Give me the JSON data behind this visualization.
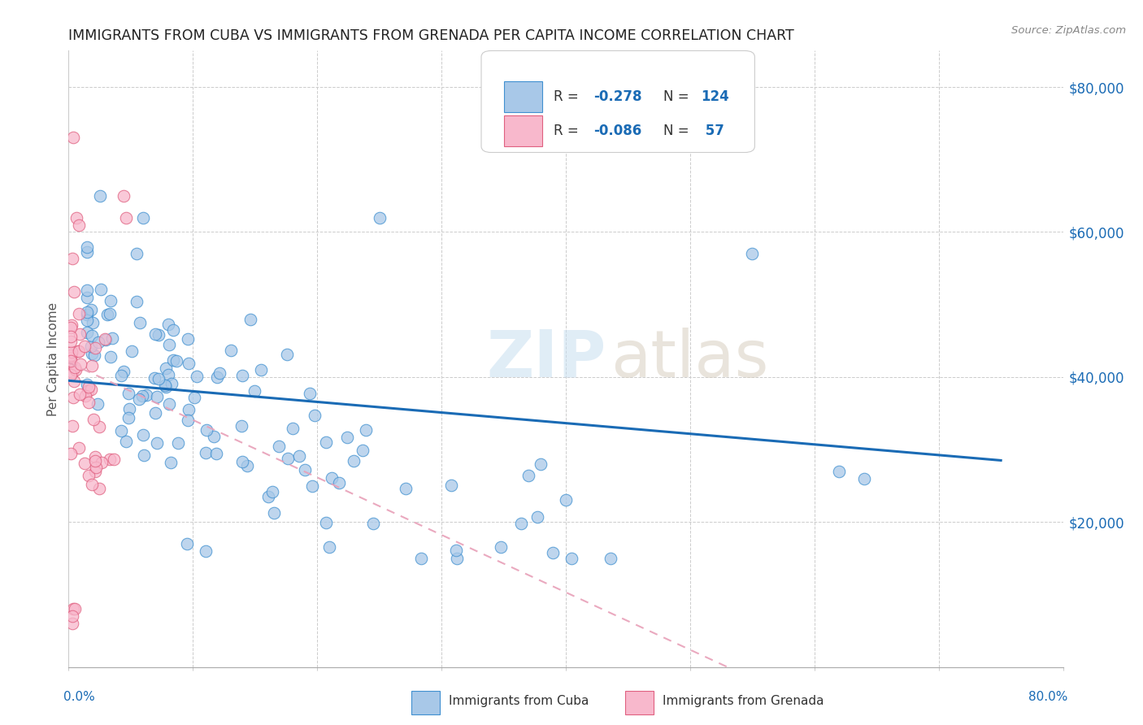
{
  "title": "IMMIGRANTS FROM CUBA VS IMMIGRANTS FROM GRENADA PER CAPITA INCOME CORRELATION CHART",
  "source": "Source: ZipAtlas.com",
  "ylabel": "Per Capita Income",
  "xlim": [
    0.0,
    0.8
  ],
  "ylim": [
    0,
    85000
  ],
  "cuba_R": -0.278,
  "cuba_N": 124,
  "grenada_R": -0.086,
  "grenada_N": 57,
  "cuba_scatter_color": "#a8c8e8",
  "cuba_edge_color": "#4090d0",
  "grenada_scatter_color": "#f8b8cc",
  "grenada_edge_color": "#e06080",
  "cuba_line_color": "#1a6bb5",
  "grenada_line_color": "#e8a0b8",
  "axis_label_color": "#1a6bb5",
  "grid_color": "#cccccc",
  "title_color": "#222222",
  "source_color": "#888888",
  "ylabel_color": "#555555",
  "legend_text_color": "#333333",
  "watermark_zip_color": "#c8dff0",
  "watermark_atlas_color": "#d8cfc0",
  "cuba_line_x0": 0.0,
  "cuba_line_x1": 0.75,
  "cuba_line_y0": 39500,
  "cuba_line_y1": 28500,
  "grenada_line_x0": 0.0,
  "grenada_line_x1": 0.53,
  "grenada_line_y0": 42000,
  "grenada_line_y1": 0
}
